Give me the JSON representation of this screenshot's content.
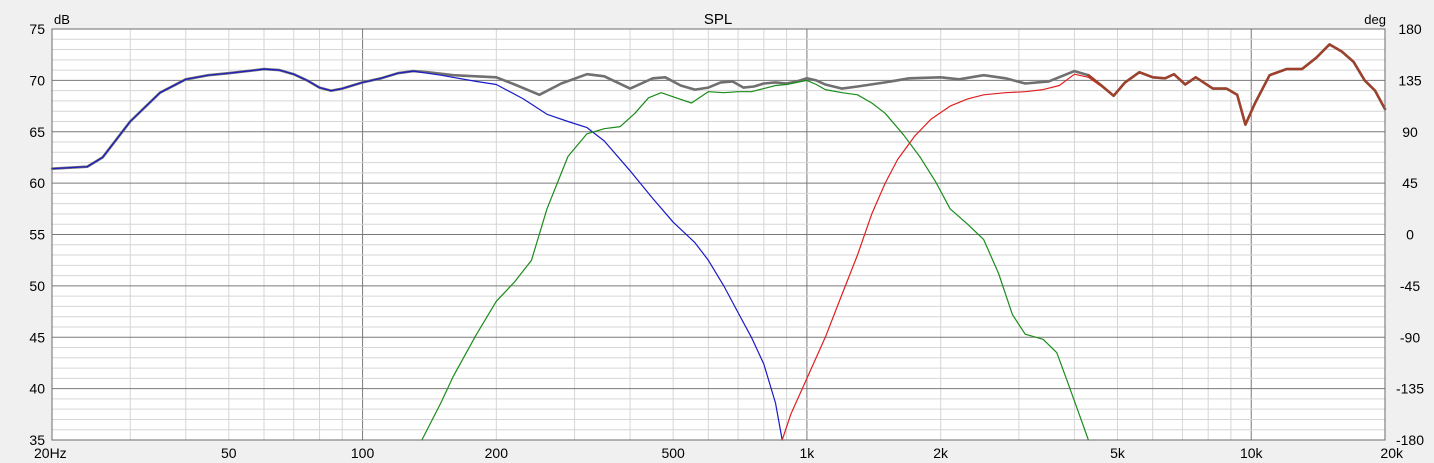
{
  "chart_data": {
    "type": "line",
    "title": "SPL",
    "ylabel_left": "dB",
    "ylabel_right": "deg",
    "x_scale": "log",
    "xlim": [
      20,
      20000
    ],
    "ylim": [
      35,
      75
    ],
    "ylim_right": [
      -180,
      180
    ],
    "grid": true,
    "x_ticks": [
      {
        "v": 20,
        "label": "20Hz"
      },
      {
        "v": 50,
        "label": "50"
      },
      {
        "v": 100,
        "label": "100"
      },
      {
        "v": 200,
        "label": "200"
      },
      {
        "v": 500,
        "label": "500"
      },
      {
        "v": 1000,
        "label": "1k"
      },
      {
        "v": 2000,
        "label": "2k"
      },
      {
        "v": 5000,
        "label": "5k"
      },
      {
        "v": 10000,
        "label": "10k"
      },
      {
        "v": 20000,
        "label": "20k"
      }
    ],
    "y_ticks_left": [
      "75",
      "70",
      "65",
      "60",
      "55",
      "50",
      "45",
      "40",
      "35"
    ],
    "y_ticks_right": [
      "180",
      "135",
      "90",
      "45",
      "0",
      "-45",
      "-90",
      "-135",
      "-180"
    ],
    "series": [
      {
        "color": "#707070",
        "width": 2.6,
        "points": [
          [
            20,
            61.4
          ],
          [
            24,
            61.6
          ],
          [
            26,
            62.5
          ],
          [
            30,
            66
          ],
          [
            35,
            68.8
          ],
          [
            40,
            70.1
          ],
          [
            45,
            70.5
          ],
          [
            50,
            70.7
          ],
          [
            55,
            70.9
          ],
          [
            60,
            71.1
          ],
          [
            65,
            71
          ],
          [
            70,
            70.6
          ],
          [
            75,
            70
          ],
          [
            80,
            69.3
          ],
          [
            85,
            69
          ],
          [
            90,
            69.2
          ],
          [
            100,
            69.8
          ],
          [
            110,
            70.2
          ],
          [
            120,
            70.7
          ],
          [
            130,
            70.9
          ],
          [
            140,
            70.8
          ],
          [
            160,
            70.5
          ],
          [
            180,
            70.4
          ],
          [
            200,
            70.3
          ],
          [
            220,
            69.6
          ],
          [
            250,
            68.6
          ],
          [
            280,
            69.7
          ],
          [
            320,
            70.6
          ],
          [
            350,
            70.4
          ],
          [
            400,
            69.2
          ],
          [
            450,
            70.2
          ],
          [
            480,
            70.3
          ],
          [
            520,
            69.5
          ],
          [
            560,
            69.1
          ],
          [
            600,
            69.3
          ],
          [
            640,
            69.8
          ],
          [
            680,
            69.9
          ],
          [
            720,
            69.3
          ],
          [
            760,
            69.4
          ],
          [
            800,
            69.7
          ],
          [
            850,
            69.8
          ],
          [
            900,
            69.7
          ],
          [
            950,
            69.9
          ],
          [
            1000,
            70.2
          ],
          [
            1050,
            70
          ],
          [
            1100,
            69.6
          ],
          [
            1200,
            69.2
          ],
          [
            1300,
            69.4
          ],
          [
            1500,
            69.8
          ],
          [
            1700,
            70.2
          ],
          [
            2000,
            70.3
          ],
          [
            2200,
            70.1
          ],
          [
            2500,
            70.5
          ],
          [
            2800,
            70.2
          ],
          [
            3100,
            69.7
          ],
          [
            3500,
            69.9
          ],
          [
            4000,
            70.9
          ],
          [
            4300,
            70.5
          ],
          [
            4600,
            69.5
          ],
          [
            4900,
            68.5
          ],
          [
            5200,
            69.8
          ],
          [
            5600,
            70.8
          ],
          [
            6000,
            70.3
          ],
          [
            6400,
            70.2
          ],
          [
            6700,
            70.6
          ],
          [
            7100,
            69.6
          ],
          [
            7500,
            70.3
          ],
          [
            8200,
            69.2
          ],
          [
            8800,
            69.2
          ],
          [
            9300,
            68.6
          ],
          [
            9700,
            65.7
          ],
          [
            10200,
            67.8
          ],
          [
            11000,
            70.5
          ],
          [
            12000,
            71.1
          ],
          [
            13000,
            71.1
          ],
          [
            14000,
            72.2
          ],
          [
            15000,
            73.5
          ],
          [
            16000,
            72.8
          ],
          [
            17000,
            71.8
          ],
          [
            18000,
            70
          ],
          [
            19000,
            69
          ],
          [
            20000,
            67.2
          ]
        ]
      },
      {
        "color": "#1a1ac8",
        "width": 1.2,
        "points": [
          [
            20,
            61.4
          ],
          [
            24,
            61.6
          ],
          [
            26,
            62.5
          ],
          [
            30,
            66
          ],
          [
            35,
            68.8
          ],
          [
            40,
            70.1
          ],
          [
            45,
            70.5
          ],
          [
            50,
            70.7
          ],
          [
            55,
            70.9
          ],
          [
            60,
            71.1
          ],
          [
            65,
            71
          ],
          [
            70,
            70.6
          ],
          [
            75,
            70
          ],
          [
            80,
            69.3
          ],
          [
            85,
            69
          ],
          [
            90,
            69.2
          ],
          [
            100,
            69.8
          ],
          [
            110,
            70.2
          ],
          [
            120,
            70.7
          ],
          [
            130,
            70.9
          ],
          [
            150,
            70.5
          ],
          [
            180,
            69.9
          ],
          [
            200,
            69.6
          ],
          [
            230,
            68.2
          ],
          [
            260,
            66.7
          ],
          [
            290,
            66
          ],
          [
            320,
            65.4
          ],
          [
            350,
            64.1
          ],
          [
            400,
            61.2
          ],
          [
            450,
            58.5
          ],
          [
            500,
            56.2
          ],
          [
            560,
            54.2
          ],
          [
            600,
            52.5
          ],
          [
            650,
            50
          ],
          [
            700,
            47.4
          ],
          [
            750,
            45
          ],
          [
            800,
            42.4
          ],
          [
            850,
            38.6
          ],
          [
            880,
            35
          ]
        ]
      },
      {
        "color": "#1a8c1a",
        "width": 1.2,
        "points": [
          [
            136,
            35
          ],
          [
            150,
            38.6
          ],
          [
            160,
            41.2
          ],
          [
            180,
            45.2
          ],
          [
            200,
            48.5
          ],
          [
            220,
            50.4
          ],
          [
            240,
            52.5
          ],
          [
            260,
            57.5
          ],
          [
            290,
            62.6
          ],
          [
            320,
            64.8
          ],
          [
            350,
            65.3
          ],
          [
            380,
            65.5
          ],
          [
            410,
            66.8
          ],
          [
            440,
            68.3
          ],
          [
            470,
            68.8
          ],
          [
            500,
            68.4
          ],
          [
            550,
            67.8
          ],
          [
            600,
            68.9
          ],
          [
            650,
            68.8
          ],
          [
            700,
            68.9
          ],
          [
            750,
            68.9
          ],
          [
            800,
            69.2
          ],
          [
            850,
            69.5
          ],
          [
            900,
            69.6
          ],
          [
            950,
            69.8
          ],
          [
            1000,
            70
          ],
          [
            1050,
            69.6
          ],
          [
            1100,
            69.1
          ],
          [
            1200,
            68.8
          ],
          [
            1300,
            68.6
          ],
          [
            1400,
            67.8
          ],
          [
            1500,
            66.8
          ],
          [
            1650,
            64.7
          ],
          [
            1800,
            62.5
          ],
          [
            1950,
            60.1
          ],
          [
            2100,
            57.5
          ],
          [
            2300,
            56
          ],
          [
            2500,
            54.5
          ],
          [
            2700,
            51.2
          ],
          [
            2900,
            47.2
          ],
          [
            3100,
            45.3
          ],
          [
            3400,
            44.8
          ],
          [
            3650,
            43.5
          ],
          [
            3850,
            40.8
          ],
          [
            4100,
            37.5
          ],
          [
            4300,
            35
          ]
        ]
      },
      {
        "color": "#e02020",
        "width": 1.2,
        "points": [
          [
            880,
            35
          ],
          [
            920,
            37.5
          ],
          [
            1000,
            41
          ],
          [
            1100,
            45
          ],
          [
            1200,
            49.2
          ],
          [
            1300,
            53
          ],
          [
            1400,
            57
          ],
          [
            1500,
            60
          ],
          [
            1600,
            62.3
          ],
          [
            1750,
            64.6
          ],
          [
            1900,
            66.2
          ],
          [
            2100,
            67.5
          ],
          [
            2300,
            68.2
          ],
          [
            2500,
            68.6
          ],
          [
            2800,
            68.8
          ],
          [
            3100,
            68.9
          ],
          [
            3400,
            69.1
          ],
          [
            3700,
            69.5
          ],
          [
            4000,
            70.6
          ],
          [
            4300,
            70.3
          ],
          [
            4600,
            69.4
          ],
          [
            4900,
            68.5
          ],
          [
            5200,
            69.8
          ],
          [
            5600,
            70.8
          ],
          [
            6000,
            70.3
          ],
          [
            6400,
            70.2
          ],
          [
            6700,
            70.6
          ],
          [
            7100,
            69.6
          ],
          [
            7500,
            70.3
          ],
          [
            8200,
            69.2
          ],
          [
            8800,
            69.2
          ],
          [
            9300,
            68.6
          ],
          [
            9700,
            65.7
          ],
          [
            10200,
            67.8
          ],
          [
            11000,
            70.5
          ],
          [
            12000,
            71.1
          ],
          [
            13000,
            71.1
          ],
          [
            14000,
            72.2
          ],
          [
            15000,
            73.5
          ],
          [
            16000,
            72.8
          ],
          [
            17000,
            71.8
          ],
          [
            18000,
            70
          ],
          [
            19000,
            69
          ],
          [
            20000,
            67.2
          ]
        ]
      },
      {
        "color": "#a0402a",
        "width": 2.4,
        "points": [
          [
            4300,
            70.5
          ],
          [
            4600,
            69.5
          ],
          [
            4900,
            68.5
          ],
          [
            5200,
            69.8
          ],
          [
            5600,
            70.8
          ],
          [
            6000,
            70.3
          ],
          [
            6400,
            70.2
          ],
          [
            6700,
            70.6
          ],
          [
            7100,
            69.6
          ],
          [
            7500,
            70.3
          ],
          [
            8200,
            69.2
          ],
          [
            8800,
            69.2
          ],
          [
            9300,
            68.6
          ],
          [
            9700,
            65.7
          ],
          [
            10200,
            67.8
          ],
          [
            11000,
            70.5
          ],
          [
            12000,
            71.1
          ],
          [
            13000,
            71.1
          ],
          [
            14000,
            72.2
          ],
          [
            15000,
            73.5
          ],
          [
            16000,
            72.8
          ],
          [
            17000,
            71.8
          ],
          [
            18000,
            70
          ],
          [
            19000,
            69
          ],
          [
            20000,
            67.2
          ]
        ]
      }
    ]
  }
}
